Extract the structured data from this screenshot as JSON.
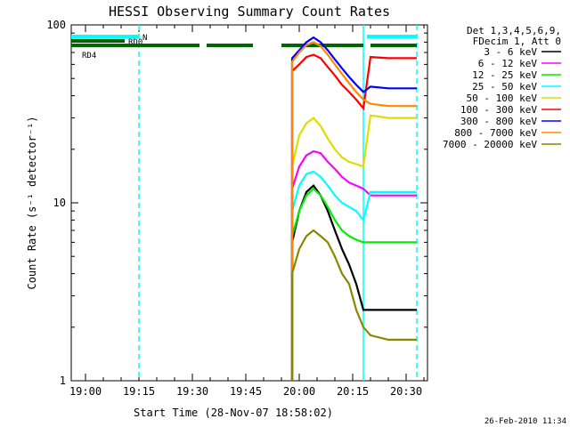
{
  "chart_data": {
    "type": "line",
    "title": "HESSI Observing Summary Count Rates",
    "xlabel": "Start Time (28-Nov-07 18:58:02)",
    "ylabel": "Count Rate (s⁻¹ detector⁻¹)",
    "yscale": "log",
    "ylim": [
      1,
      100
    ],
    "xlim": [
      "18:56",
      "20:36"
    ],
    "x_ticks": [
      "19:00",
      "19:15",
      "19:30",
      "19:45",
      "20:00",
      "20:15",
      "20:30"
    ],
    "y_ticks": [
      "1",
      "10",
      "100"
    ],
    "grid": false,
    "legend_position": "right",
    "legend_header": [
      "Det 1,3,4,5,6,9,",
      "FDecim 1, Att 0"
    ],
    "timestamp": "26-Feb-2010 11:34",
    "series": [
      {
        "name": "3 - 6 keV",
        "color": "#000000",
        "x": [
          "19:58",
          "20:00",
          "20:02",
          "20:04",
          "20:06",
          "20:08",
          "20:10",
          "20:12",
          "20:14",
          "20:16",
          "20:18",
          "20:20",
          "20:25",
          "20:30",
          "20:33"
        ],
        "y": [
          6,
          9,
          11.5,
          12.5,
          11,
          9,
          7,
          5.5,
          4.5,
          3.5,
          2.5,
          2.5,
          2.5,
          2.5,
          2.5
        ]
      },
      {
        "name": "6 - 12 keV",
        "color": "#ff00ff",
        "x": [
          "19:58",
          "20:00",
          "20:02",
          "20:04",
          "20:06",
          "20:08",
          "20:10",
          "20:12",
          "20:14",
          "20:16",
          "20:18",
          "20:20",
          "20:25",
          "20:30",
          "20:33"
        ],
        "y": [
          12,
          16,
          18.5,
          19.5,
          19,
          17,
          15.5,
          14,
          13,
          12.5,
          12,
          11,
          11,
          11,
          11
        ]
      },
      {
        "name": "12 - 25 keV",
        "color": "#00ee00",
        "x": [
          "19:58",
          "20:00",
          "20:02",
          "20:04",
          "20:06",
          "20:08",
          "20:10",
          "20:12",
          "20:14",
          "20:16",
          "20:18",
          "20:20",
          "20:25",
          "20:30",
          "20:33"
        ],
        "y": [
          6.5,
          9,
          11,
          12,
          11,
          9.5,
          8,
          7,
          6.5,
          6.2,
          6,
          6,
          6,
          6,
          6
        ]
      },
      {
        "name": "25 - 50 keV",
        "color": "#00ffff",
        "x": [
          "19:58",
          "20:00",
          "20:02",
          "20:04",
          "20:06",
          "20:08",
          "20:10",
          "20:12",
          "20:14",
          "20:16",
          "20:18",
          "20:20",
          "20:25",
          "20:30",
          "20:33"
        ],
        "y": [
          9,
          12.5,
          14.5,
          15,
          14,
          12.5,
          11,
          10,
          9.5,
          9,
          8,
          11.5,
          11.5,
          11.5,
          11.5
        ]
      },
      {
        "name": "50 - 100 keV",
        "color": "#dddd00",
        "x": [
          "19:58",
          "20:00",
          "20:02",
          "20:04",
          "20:06",
          "20:08",
          "20:10",
          "20:12",
          "20:14",
          "20:16",
          "20:18",
          "20:20",
          "20:25",
          "20:30",
          "20:33"
        ],
        "y": [
          16,
          24,
          28,
          30,
          27,
          23,
          20,
          18,
          17,
          16.5,
          16,
          31,
          30,
          30,
          30
        ]
      },
      {
        "name": "100 - 300 keV",
        "color": "#ff0000",
        "x": [
          "19:58",
          "20:00",
          "20:02",
          "20:04",
          "20:06",
          "20:08",
          "20:10",
          "20:12",
          "20:14",
          "20:16",
          "20:18",
          "20:20",
          "20:25",
          "20:30",
          "20:33"
        ],
        "y": [
          55,
          60,
          66,
          68,
          65,
          58,
          52,
          46,
          42,
          38,
          34,
          66,
          65,
          65,
          65
        ]
      },
      {
        "name": "300 - 800 keV",
        "color": "#0000ff",
        "x": [
          "19:58",
          "20:00",
          "20:02",
          "20:04",
          "20:06",
          "20:08",
          "20:10",
          "20:12",
          "20:14",
          "20:16",
          "20:18",
          "20:20",
          "20:25",
          "20:30",
          "20:33"
        ],
        "y": [
          65,
          72,
          80,
          85,
          80,
          72,
          64,
          57,
          51,
          46,
          42,
          45,
          44,
          44,
          44
        ]
      },
      {
        "name": "800 - 7000 keV",
        "color": "#ff8800",
        "x": [
          "19:58",
          "20:00",
          "20:02",
          "20:04",
          "20:06",
          "20:08",
          "20:10",
          "20:12",
          "20:14",
          "20:16",
          "20:18",
          "20:20",
          "20:25",
          "20:30",
          "20:33"
        ],
        "y": [
          62,
          70,
          77,
          80,
          76,
          68,
          60,
          53,
          47,
          42,
          38,
          36,
          35,
          35,
          35
        ]
      },
      {
        "name": "7000 - 20000 keV",
        "color": "#888800",
        "x": [
          "19:58",
          "20:00",
          "20:02",
          "20:04",
          "20:06",
          "20:08",
          "20:10",
          "20:12",
          "20:14",
          "20:16",
          "20:18",
          "20:20",
          "20:25",
          "20:30",
          "20:33"
        ],
        "y": [
          4,
          5.5,
          6.5,
          7,
          6.5,
          6,
          5,
          4,
          3.5,
          2.5,
          2,
          1.8,
          1.7,
          1.7,
          1.7
        ]
      }
    ],
    "flags": [
      {
        "label": "N",
        "color": "#00ffff",
        "segments": [
          [
            "18:56",
            "19:15"
          ],
          [
            "20:19",
            "20:33"
          ]
        ]
      },
      {
        "label": "RD0",
        "color": "#006600",
        "segments": [
          [
            "18:56",
            "19:11"
          ]
        ]
      },
      {
        "label": "RD4",
        "color": "#006600",
        "segments": [
          [
            "18:56",
            "19:32"
          ],
          [
            "19:34",
            "19:47"
          ],
          [
            "19:55",
            "20:18"
          ],
          [
            "20:20",
            "20:33"
          ]
        ]
      }
    ],
    "vertical_lines": [
      {
        "x": "19:15",
        "color": "#00ffff",
        "style": "dashed"
      },
      {
        "x": "20:18",
        "color": "#00ffff",
        "style": "solid"
      },
      {
        "x": "20:33",
        "color": "#00ffff",
        "style": "dashed"
      }
    ]
  }
}
